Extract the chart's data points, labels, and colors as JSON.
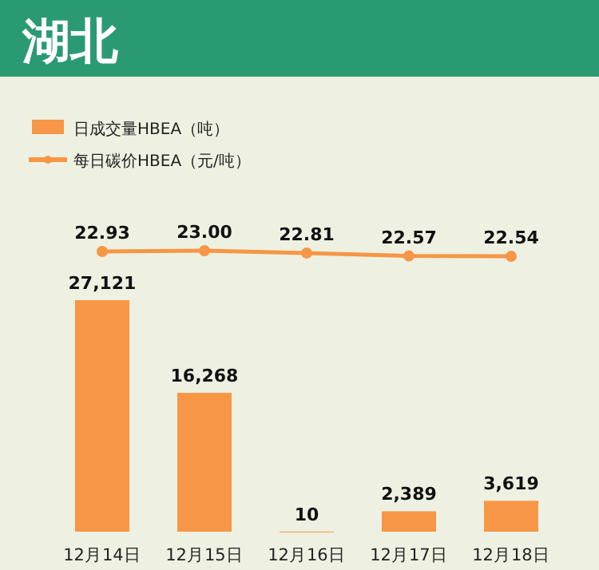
{
  "chart_data": [
    {
      "type": "line",
      "title": "湖北",
      "categories": [
        null,
        null,
        null,
        null,
        null
      ],
      "series": [
        {
          "name": "每日碳价HBEA（元/吨）",
          "color": "#f79646",
          "values": [
            22.93,
            23.0,
            22.81,
            22.57,
            22.54
          ],
          "value_labels": [
            "22.93",
            "23.00",
            "22.81",
            "22.57",
            "22.54"
          ]
        }
      ],
      "marker": "circle",
      "legend": "top left"
    },
    {
      "type": "bar",
      "categories": [
        "12月14日",
        "12月15日",
        "12月16日",
        "12月17日",
        "12月18日"
      ],
      "series": [
        {
          "name": "日成交量HBEA（吨）",
          "color": "#f79646",
          "values": [
            27121,
            16268,
            10,
            2389,
            3619
          ],
          "value_labels": [
            "27,121",
            "16,268",
            "10",
            "2,389",
            "3,619"
          ]
        }
      ],
      "legend": "top left"
    }
  ]
}
